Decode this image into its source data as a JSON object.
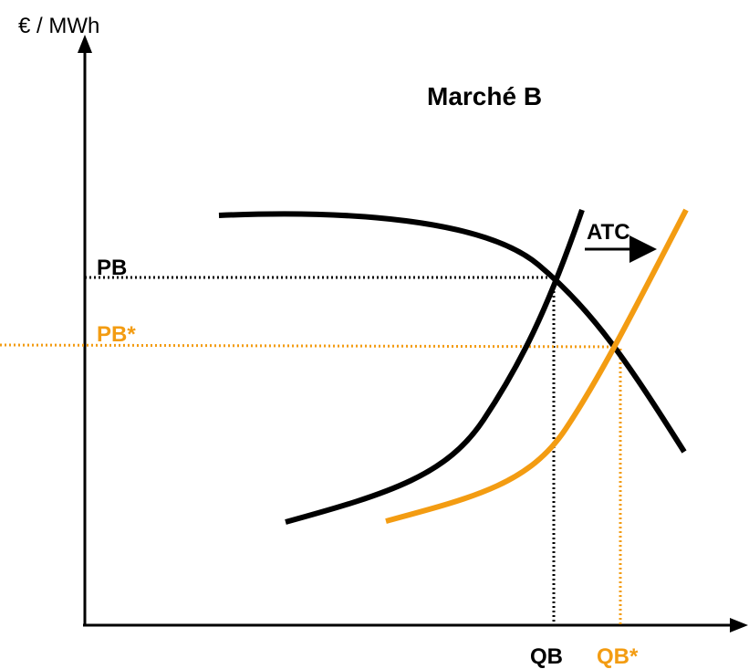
{
  "title": "Marché B",
  "y_axis_label": "€ / MWh",
  "labels": {
    "pb": "PB",
    "pb_star": "PB*",
    "qb": "QB",
    "qb_star": "QB*",
    "atc": "ATC"
  },
  "colors": {
    "axis": "#000000",
    "demand": "#000000",
    "supply_initial": "#000000",
    "supply_shifted": "#f39c12",
    "equilibrium_initial": "#000000",
    "equilibrium_shifted": "#f39c12"
  }
}
